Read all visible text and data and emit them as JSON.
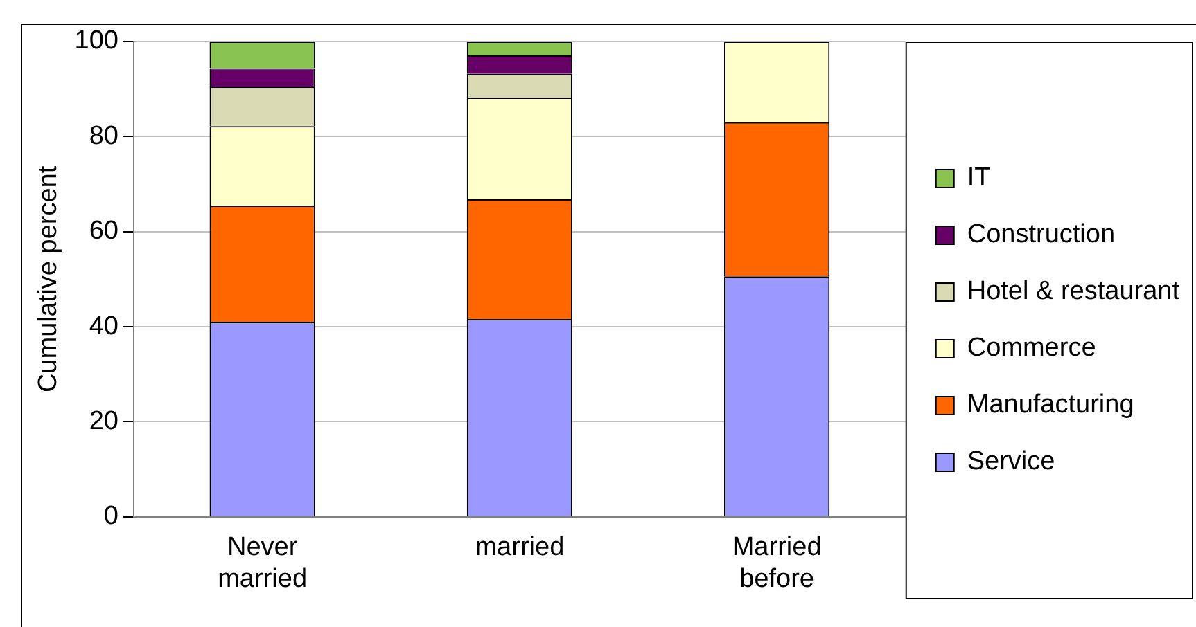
{
  "chart_data": {
    "type": "bar",
    "stacked": true,
    "ylabel": "Cumulative percent",
    "categories": [
      "Never married",
      "married",
      "Married before"
    ],
    "series": [
      {
        "name": "Service",
        "color": "#9999ff",
        "values": [
          41,
          41.6,
          50.6
        ]
      },
      {
        "name": "Manufacturing",
        "color": "#ff6600",
        "values": [
          24.5,
          25.2,
          32.4
        ]
      },
      {
        "name": "Commerce",
        "color": "#ffffcc",
        "values": [
          16.7,
          21.4,
          17
        ]
      },
      {
        "name": "Hotel & restaurant",
        "color": "#d9d9b3",
        "values": [
          8.3,
          5,
          null
        ]
      },
      {
        "name": "Construction",
        "color": "#660066",
        "values": [
          3.9,
          3.9,
          null
        ]
      },
      {
        "name": "IT",
        "color": "#88c44f",
        "values": [
          5.6,
          2.9,
          null
        ]
      }
    ],
    "ylim": [
      0,
      100
    ],
    "yticks": [
      0,
      20,
      40,
      60,
      80,
      100
    ],
    "grid": "y",
    "legend": "right"
  }
}
